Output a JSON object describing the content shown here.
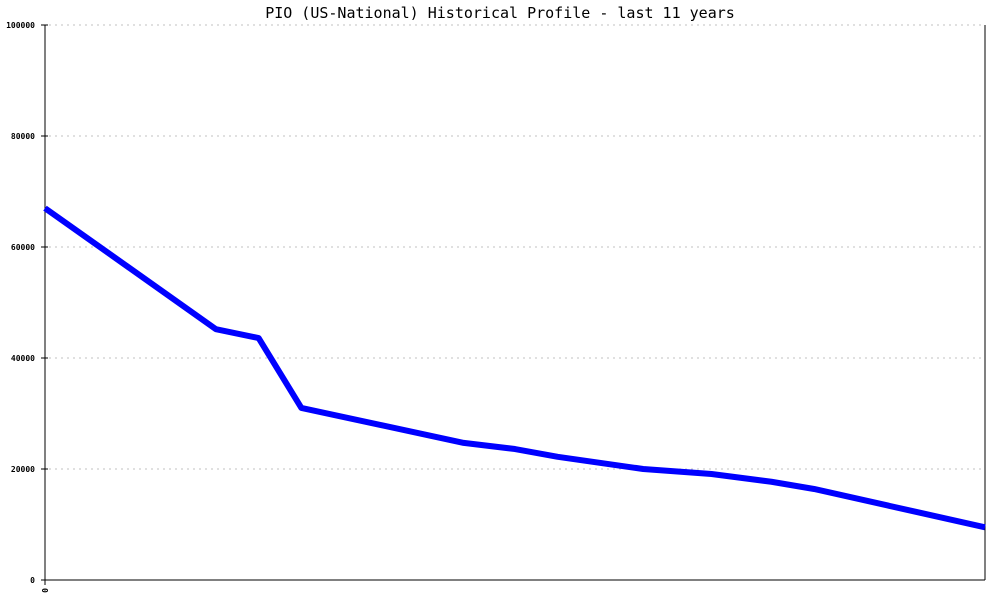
{
  "chart_data": {
    "type": "line",
    "title": "PIO (US-National) Historical Profile - last 11 years",
    "xlabel": "",
    "ylabel": "",
    "xlim": [
      0,
      11
    ],
    "ylim": [
      0,
      100000
    ],
    "x_tick_labels": [
      "0"
    ],
    "y_ticks": [
      0,
      20000,
      40000,
      60000,
      80000,
      100000
    ],
    "y_tick_labels": [
      "0",
      "20000",
      "40000",
      "60000",
      "80000",
      "100000"
    ],
    "grid": "horizontal dotted",
    "legend": "none",
    "series": [
      {
        "color": "#0000ff",
        "x": [
          0,
          2.0,
          2.5,
          3.0,
          4.9,
          5.5,
          6.0,
          7.0,
          7.8,
          8.5,
          9.0,
          11.0
        ],
        "values": [
          67000,
          45200,
          43600,
          31000,
          24700,
          23600,
          22200,
          20000,
          19100,
          17700,
          16400,
          9500
        ]
      }
    ]
  }
}
